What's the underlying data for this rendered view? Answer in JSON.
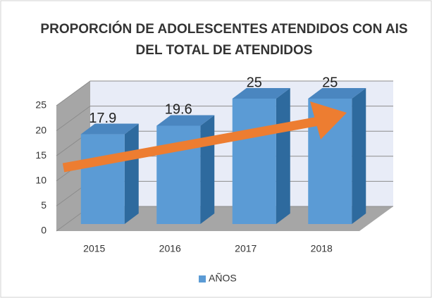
{
  "chart_data": {
    "type": "bar3d",
    "title": [
      "PROPORCIÓN DE ADOLESCENTES ATENDIDOS CON AIS",
      "DEL TOTAL DE ATENDIDOS"
    ],
    "categories": [
      "2015",
      "2016",
      "2017",
      "2018"
    ],
    "series": [
      {
        "name": "AÑOS",
        "color": "#5b9bd5",
        "values": [
          17.9,
          19.6,
          25,
          25
        ]
      }
    ],
    "ylim": [
      0,
      25
    ],
    "yticks": [
      0,
      5,
      10,
      15,
      20,
      25
    ],
    "grid": true,
    "legend": "bottom"
  }
}
